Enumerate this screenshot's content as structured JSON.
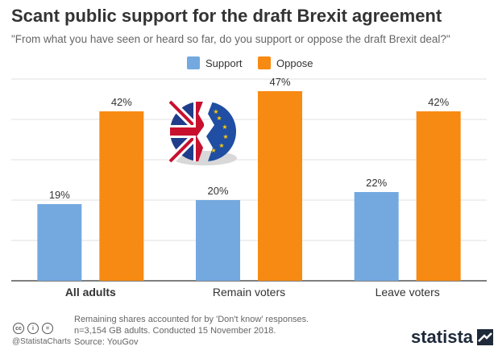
{
  "header": {
    "title": "Scant public support for the draft Brexit agreement",
    "subtitle": "\"From what you have seen or heard so far, do you support or oppose the draft Brexit deal?\""
  },
  "chart_data": {
    "type": "bar",
    "categories": [
      "All adults",
      "Remain voters",
      "Leave voters"
    ],
    "series": [
      {
        "name": "Support",
        "values": [
          19,
          20,
          22
        ],
        "labels": [
          "19%",
          "20%",
          "22%"
        ],
        "color": "#74a9e0"
      },
      {
        "name": "Oppose",
        "values": [
          42,
          47,
          42
        ],
        "labels": [
          "42%",
          "47%",
          "42%"
        ],
        "color": "#f78a12"
      }
    ],
    "ylim": [
      0,
      50
    ],
    "grid": true,
    "legend_position": "top-center",
    "bold_category": "All adults"
  },
  "footer": {
    "note_lines": [
      "Remaining shares accounted for by 'Don't know' responses.",
      "n=3,154 GB adults. Conducted 15 November 2018.",
      "Source: YouGov"
    ],
    "handle": "@StatistaCharts",
    "brand": "statista",
    "license_icons": [
      "cc",
      "i",
      "="
    ]
  },
  "colors": {
    "support": "#74a9e0",
    "oppose": "#f78a12",
    "grid": "#e2e2e2",
    "axis": "#333333"
  }
}
